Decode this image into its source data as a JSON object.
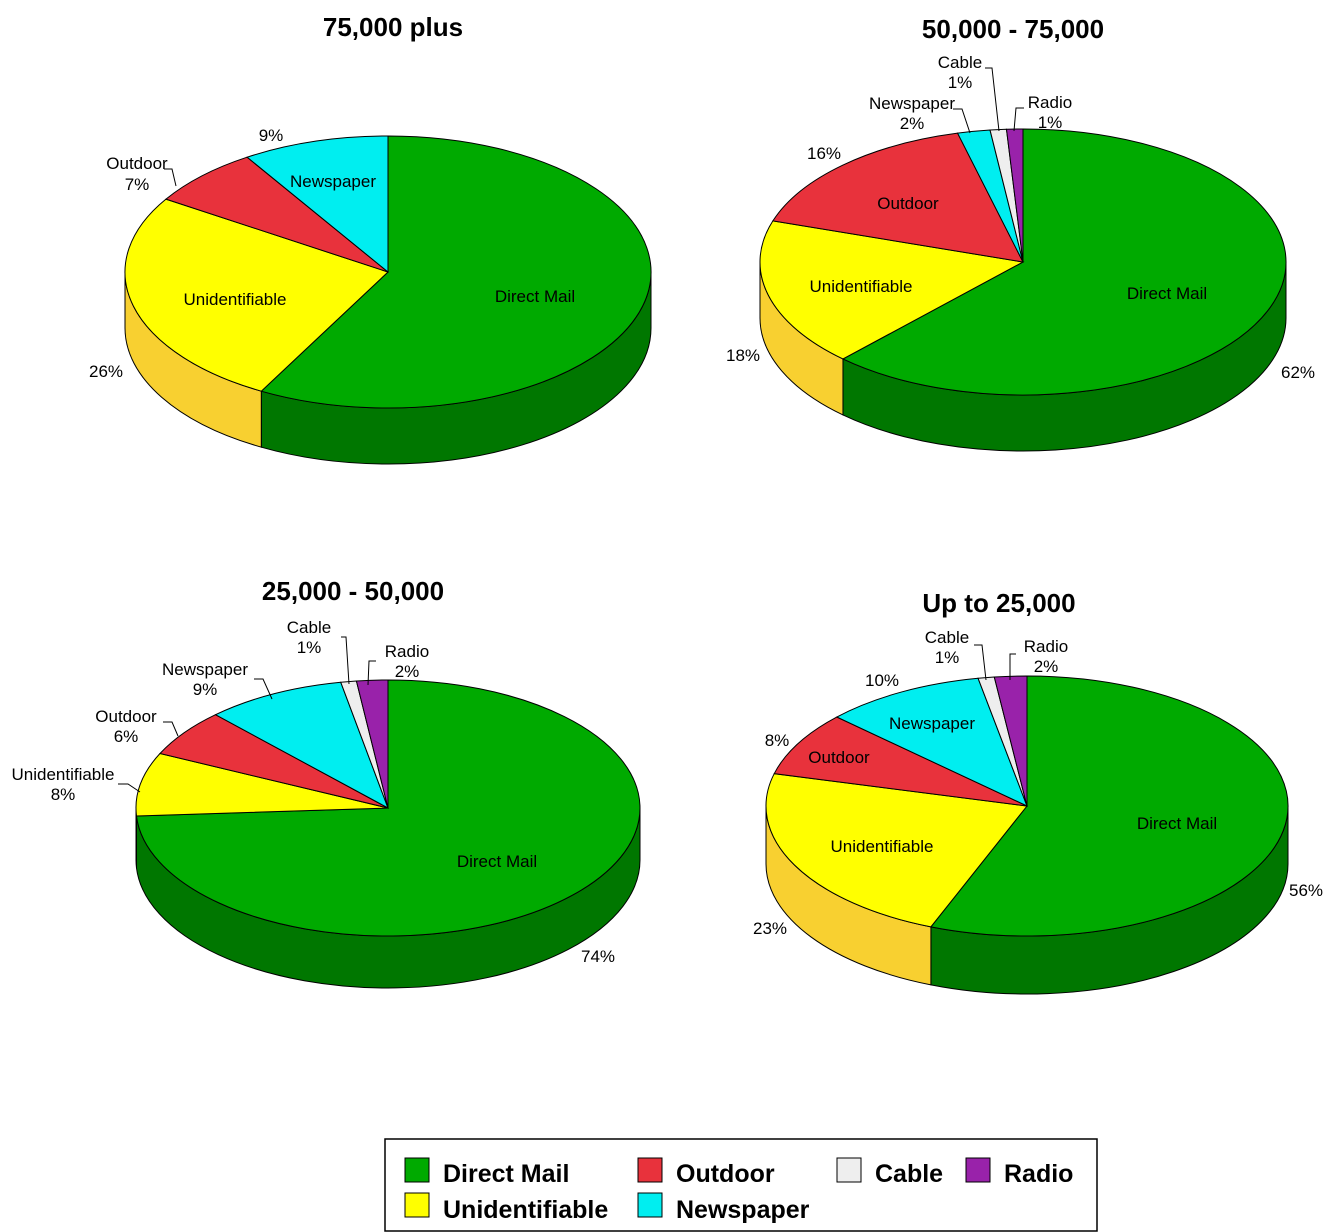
{
  "colors": {
    "Direct Mail": "#00aa00",
    "Unidentifiable": "#ffff00",
    "Outdoor": "#e8323c",
    "Newspaper": "#00eef0",
    "Cable": "#eeeeee",
    "Radio": "#9922aa"
  },
  "side_colors": {
    "Direct Mail": "#007700",
    "Unidentifiable": "#f8d030",
    "Outdoor": "#b01020",
    "Newspaper": "#00b0b0",
    "Cable": "#bbbbbb",
    "Radio": "#661177"
  },
  "chart_data": [
    {
      "type": "pie",
      "title": "75,000 plus",
      "slices": [
        {
          "label": "Direct Mail",
          "value": 58,
          "pct": ""
        },
        {
          "label": "Unidentifiable",
          "value": 26,
          "pct": "26%"
        },
        {
          "label": "Outdoor",
          "value": 7,
          "pct": "7%"
        },
        {
          "label": "Newspaper",
          "value": 9,
          "pct": "9%"
        }
      ]
    },
    {
      "type": "pie",
      "title": "50,000 - 75,000",
      "slices": [
        {
          "label": "Direct Mail",
          "value": 62,
          "pct": "62%"
        },
        {
          "label": "Unidentifiable",
          "value": 18,
          "pct": "18%"
        },
        {
          "label": "Outdoor",
          "value": 16,
          "pct": "16%"
        },
        {
          "label": "Newspaper",
          "value": 2,
          "pct": "2%"
        },
        {
          "label": "Cable",
          "value": 1,
          "pct": "1%"
        },
        {
          "label": "Radio",
          "value": 1,
          "pct": "1%"
        }
      ]
    },
    {
      "type": "pie",
      "title": "25,000 - 50,000",
      "slices": [
        {
          "label": "Direct Mail",
          "value": 74,
          "pct": "74%"
        },
        {
          "label": "Unidentifiable",
          "value": 8,
          "pct": "8%"
        },
        {
          "label": "Outdoor",
          "value": 6,
          "pct": "6%"
        },
        {
          "label": "Newspaper",
          "value": 9,
          "pct": "9%"
        },
        {
          "label": "Cable",
          "value": 1,
          "pct": "1%"
        },
        {
          "label": "Radio",
          "value": 2,
          "pct": "2%"
        }
      ]
    },
    {
      "type": "pie",
      "title": "Up to 25,000",
      "slices": [
        {
          "label": "Direct Mail",
          "value": 56,
          "pct": "56%"
        },
        {
          "label": "Unidentifiable",
          "value": 23,
          "pct": "23%"
        },
        {
          "label": "Outdoor",
          "value": 8,
          "pct": "8%"
        },
        {
          "label": "Newspaper",
          "value": 10,
          "pct": "10%"
        },
        {
          "label": "Cable",
          "value": 1,
          "pct": "1%"
        },
        {
          "label": "Radio",
          "value": 2,
          "pct": "2%"
        }
      ]
    }
  ],
  "legend": {
    "items": [
      "Direct Mail",
      "Outdoor",
      "Cable",
      "Radio",
      "Unidentifiable",
      "Newspaper"
    ]
  }
}
